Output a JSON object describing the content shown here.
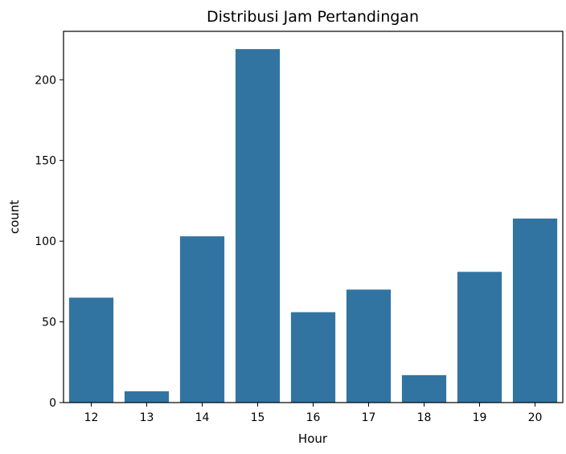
{
  "chart_data": {
    "type": "bar",
    "title": "Distribusi Jam Pertandingan",
    "xlabel": "Hour",
    "ylabel": "count",
    "categories": [
      "12",
      "13",
      "14",
      "15",
      "16",
      "17",
      "18",
      "19",
      "20"
    ],
    "values": [
      65,
      7,
      103,
      219,
      56,
      70,
      17,
      81,
      114
    ],
    "ylim": [
      0,
      230
    ],
    "yticks": [
      0,
      50,
      100,
      150,
      200
    ],
    "grid": false,
    "bar_color": "#3274a1"
  }
}
